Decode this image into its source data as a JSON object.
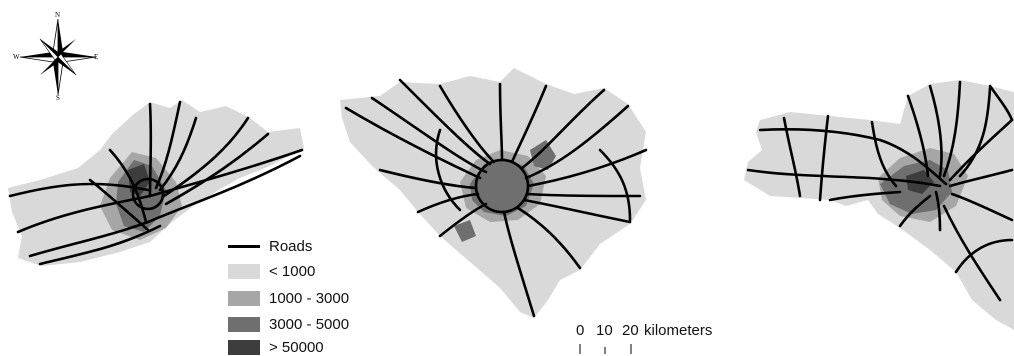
{
  "compass": {
    "north": "N",
    "south": "S",
    "east": "E",
    "west": "W"
  },
  "legend": {
    "roads_label": "Roads",
    "classes": [
      {
        "label": "< 1000",
        "color": "#d9d9d9"
      },
      {
        "label": "1000 - 3000",
        "color": "#a6a6a6"
      },
      {
        "label": "3000 - 5000",
        "color": "#6f6f6f"
      },
      {
        "label": "> 50000",
        "color": "#3d3d3d"
      }
    ]
  },
  "scale_bar": {
    "ticks": [
      "0",
      "10",
      "20"
    ],
    "unit": "kilometers"
  }
}
